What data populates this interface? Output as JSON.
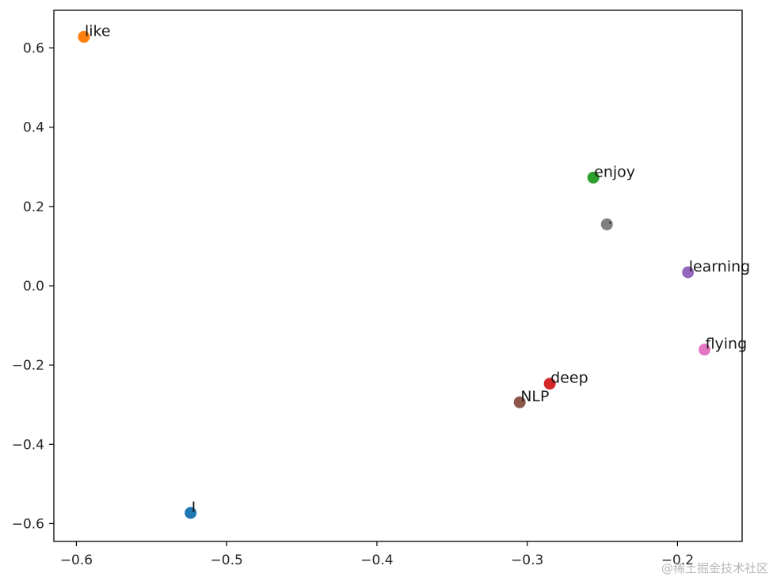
{
  "chart_data": {
    "type": "scatter",
    "title": "",
    "xlabel": "",
    "ylabel": "",
    "xlim": [
      -0.615,
      -0.157
    ],
    "ylim": [
      -0.645,
      0.695
    ],
    "grid": false,
    "legend": "none",
    "x_ticks": [
      {
        "value": -0.6,
        "label": "−0.6"
      },
      {
        "value": -0.5,
        "label": "−0.5"
      },
      {
        "value": -0.4,
        "label": "−0.4"
      },
      {
        "value": -0.3,
        "label": "−0.3"
      },
      {
        "value": -0.2,
        "label": "−0.2"
      }
    ],
    "y_ticks": [
      {
        "value": 0.6,
        "label": "0.6"
      },
      {
        "value": 0.4,
        "label": "0.4"
      },
      {
        "value": 0.2,
        "label": "0.2"
      },
      {
        "value": 0.0,
        "label": "0.0"
      },
      {
        "value": -0.2,
        "label": "−0.2"
      },
      {
        "value": -0.4,
        "label": "−0.4"
      },
      {
        "value": -0.6,
        "label": "−0.6"
      }
    ],
    "points": [
      {
        "label": "I",
        "x": -0.524,
        "y": -0.573,
        "color": "#1f77b4"
      },
      {
        "label": "like",
        "x": -0.595,
        "y": 0.628,
        "color": "#ff7f0e"
      },
      {
        "label": "enjoy",
        "x": -0.256,
        "y": 0.273,
        "color": "#2ca02c"
      },
      {
        "label": "deep",
        "x": -0.285,
        "y": -0.247,
        "color": "#d62728"
      },
      {
        "label": "learning",
        "x": -0.193,
        "y": 0.034,
        "color": "#9467bd"
      },
      {
        "label": "NLP",
        "x": -0.305,
        "y": -0.294,
        "color": "#8c564b"
      },
      {
        "label": "flying",
        "x": -0.182,
        "y": -0.161,
        "color": "#e377c2"
      },
      {
        "label": ".",
        "x": -0.247,
        "y": 0.155,
        "color": "#7f7f7f"
      }
    ]
  },
  "watermark": "@稀土掘金技术社区"
}
